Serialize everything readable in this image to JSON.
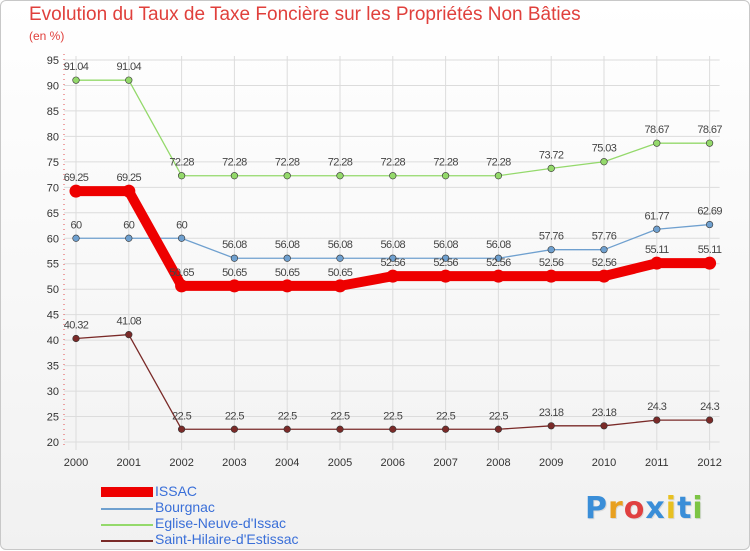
{
  "title": "Evolution du Taux de Taxe Foncière sur les Propriétés Non Bâties",
  "subtitle": "(en %)",
  "logo": {
    "letters": [
      "P",
      "r",
      "o",
      "x",
      "i",
      "t",
      "i"
    ],
    "colors": [
      "#3a8ed8",
      "#e8a020",
      "#e04040",
      "#3a8ed8",
      "#e8c020",
      "#3a8ed8",
      "#7cc444"
    ]
  },
  "chart_data": {
    "type": "line",
    "title": "Evolution du Taux de Taxe Foncière sur les Propriétés Non Bâties",
    "ylabel": "(en %)",
    "xlabel": "",
    "ylim": [
      20,
      95
    ],
    "yticks": [
      "20",
      "25",
      "30",
      "35",
      "40",
      "45",
      "50",
      "55",
      "60",
      "65",
      "70",
      "75",
      "80",
      "85",
      "90",
      "95"
    ],
    "categories": [
      "2000",
      "2001",
      "2002",
      "2003",
      "2004",
      "2005",
      "2006",
      "2007",
      "2008",
      "2009",
      "2010",
      "2011",
      "2012"
    ],
    "grid": true,
    "series": [
      {
        "name": "ISSAC",
        "color": "#ee0000",
        "bold": true,
        "values": [
          69.25,
          69.25,
          50.65,
          50.65,
          50.65,
          50.65,
          52.56,
          52.56,
          52.56,
          52.56,
          52.56,
          55.11,
          55.11
        ],
        "labels": [
          "69.25",
          "69.25",
          "50.65",
          "50.65",
          "50.65",
          "50.65",
          "52.56",
          "52.56",
          "52.56",
          "52.56",
          "52.56",
          "55.11",
          "55.11"
        ]
      },
      {
        "name": "Bourgnac",
        "color": "#6fa0cf",
        "bold": false,
        "values": [
          60,
          60,
          60,
          56.08,
          56.08,
          56.08,
          56.08,
          56.08,
          56.08,
          57.76,
          57.76,
          61.77,
          62.69
        ],
        "labels": [
          "60",
          "60",
          "60",
          "56.08",
          "56.08",
          "56.08",
          "56.08",
          "56.08",
          "56.08",
          "57.76",
          "57.76",
          "61.77",
          "62.69"
        ]
      },
      {
        "name": "Eglise-Neuve-d'Issac",
        "color": "#94d96b",
        "bold": false,
        "values": [
          91.04,
          91.04,
          72.28,
          72.28,
          72.28,
          72.28,
          72.28,
          72.28,
          72.28,
          73.72,
          75.03,
          78.67,
          78.67
        ],
        "labels": [
          "91.04",
          "91.04",
          "72.28",
          "72.28",
          "72.28",
          "72.28",
          "72.28",
          "72.28",
          "72.28",
          "73.72",
          "75.03",
          "78.67",
          "78.67"
        ]
      },
      {
        "name": "Saint-Hilaire-d'Estissac",
        "color": "#7a2a28",
        "bold": false,
        "values": [
          40.32,
          41.08,
          22.5,
          22.5,
          22.5,
          22.5,
          22.5,
          22.5,
          22.5,
          23.18,
          23.18,
          24.3,
          24.3
        ],
        "labels": [
          "40.32",
          "41.08",
          "22.5",
          "22.5",
          "22.5",
          "22.5",
          "22.5",
          "22.5",
          "22.5",
          "23.18",
          "23.18",
          "24.3",
          "24.3"
        ]
      }
    ]
  }
}
